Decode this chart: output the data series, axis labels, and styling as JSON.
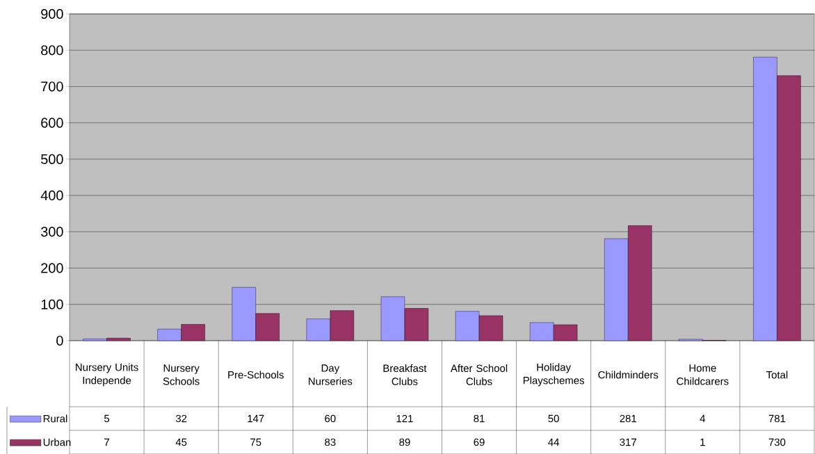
{
  "chart_data": {
    "type": "bar",
    "categories": [
      "Nursery Units Independe",
      "Nursery Schools",
      "Pre-Schools",
      "Day Nurseries",
      "Breakfast Clubs",
      "After School Clubs",
      "Holiday Playschemes",
      "Childminders",
      "Home Childcarers",
      "Total"
    ],
    "series": [
      {
        "name": "Rural",
        "color": "#9999ff",
        "values": [
          5,
          32,
          147,
          60,
          121,
          81,
          50,
          281,
          4,
          781
        ]
      },
      {
        "name": "Urban",
        "color": "#993366",
        "values": [
          7,
          45,
          75,
          83,
          89,
          69,
          44,
          317,
          1,
          730
        ]
      }
    ],
    "ylim": [
      0,
      900
    ],
    "yticks": [
      0,
      100,
      200,
      300,
      400,
      500,
      600,
      700,
      800,
      900
    ],
    "grid": "y",
    "legend": "bottom left",
    "data_labels": true
  }
}
